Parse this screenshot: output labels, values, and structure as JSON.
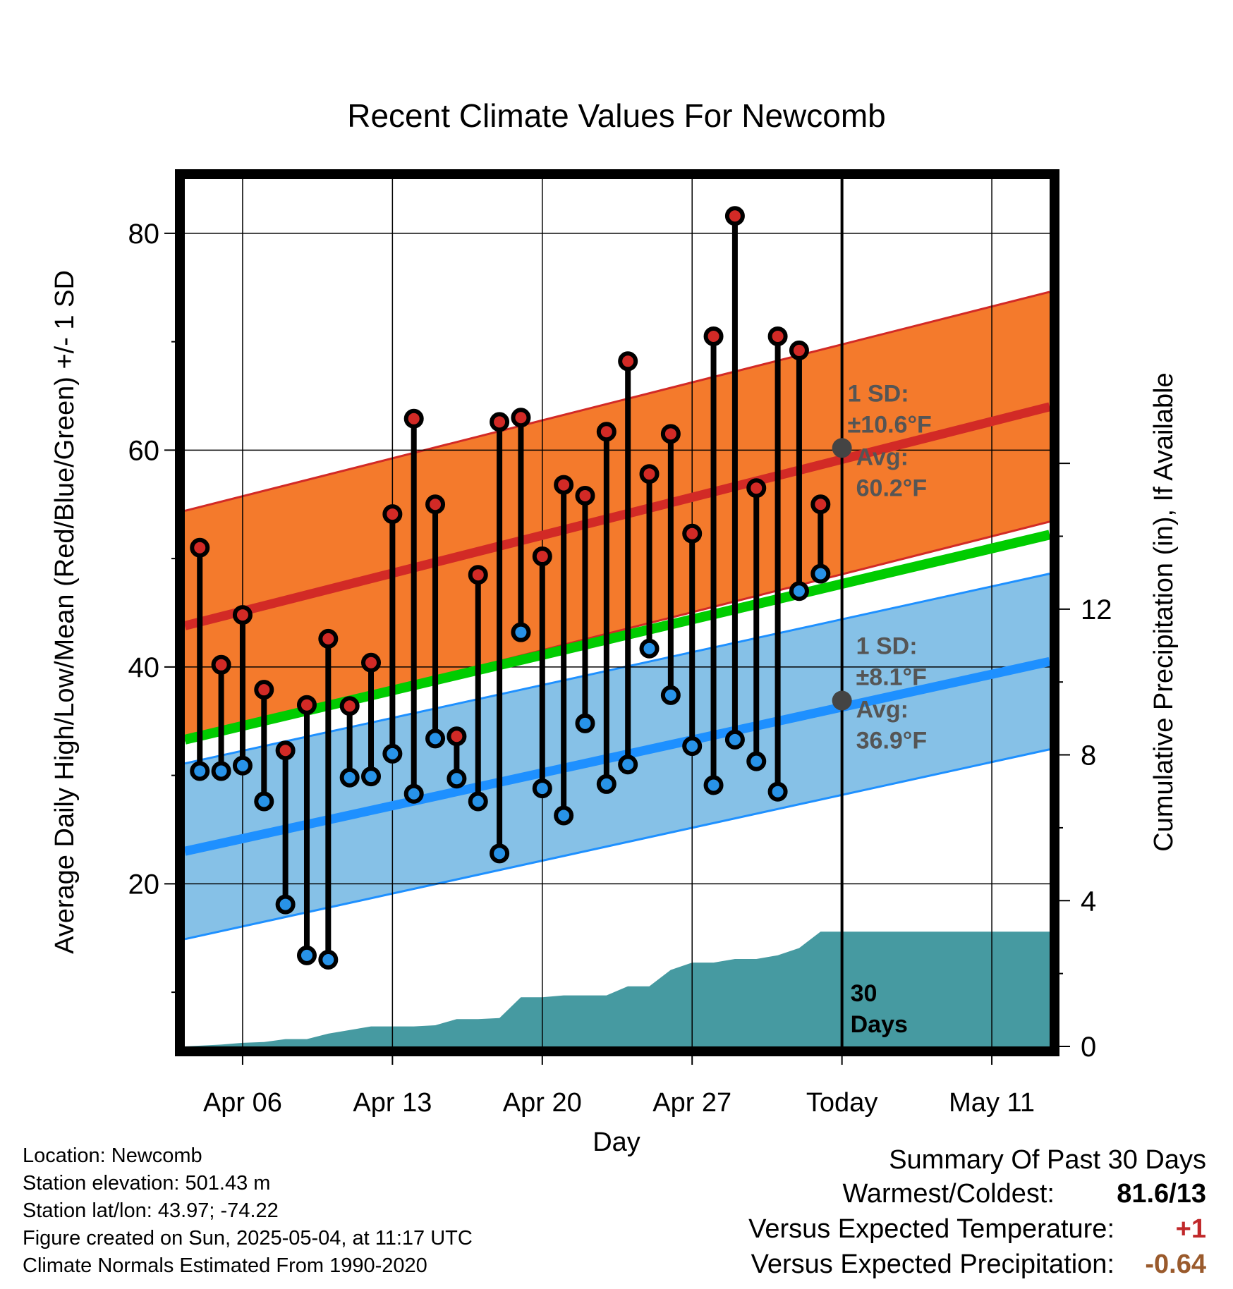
{
  "chart_data": {
    "type": "line",
    "title": "Recent Climate Values For Newcomb",
    "xlabel": "Day",
    "ylabel": "Average Daily High/Low/Mean (Red/Blue/Green) +/- 1 SD",
    "y2label": "Cumulative Precipitation (in), If Available",
    "ylim": [
      5,
      85
    ],
    "y2lim": [
      0,
      23.8
    ],
    "y_ticks": [
      "20",
      "40",
      "60",
      "80"
    ],
    "y2_ticks": [
      "0",
      "4",
      "8",
      "12"
    ],
    "x_tick_labels": [
      "Apr 06",
      "Apr 13",
      "Apr 20",
      "Apr 27",
      "Today",
      "May 11"
    ],
    "x_tick_days": [
      6,
      13,
      20,
      27,
      34,
      41
    ],
    "xlim": [
      3.3,
      43.7
    ],
    "today_day": 34,
    "days": [
      4,
      5,
      6,
      7,
      8,
      9,
      10,
      11,
      12,
      13,
      14,
      15,
      16,
      17,
      18,
      19,
      20,
      21,
      22,
      23,
      24,
      25,
      26,
      27,
      28,
      29,
      30,
      31,
      32,
      33
    ],
    "observed_high": [
      51.0,
      40.2,
      44.8,
      37.9,
      32.3,
      36.5,
      42.6,
      36.4,
      40.4,
      54.1,
      62.9,
      55.0,
      33.6,
      48.5,
      62.6,
      63.0,
      50.2,
      56.8,
      55.8,
      61.7,
      68.2,
      57.8,
      61.5,
      52.3,
      70.5,
      81.6,
      56.5,
      70.5,
      69.2,
      55.0
    ],
    "observed_low": [
      30.4,
      30.4,
      30.9,
      27.6,
      18.1,
      13.4,
      13.0,
      29.8,
      29.9,
      32.0,
      28.3,
      33.4,
      29.7,
      27.6,
      22.8,
      43.2,
      28.8,
      26.3,
      34.8,
      29.2,
      31.0,
      41.7,
      37.4,
      32.7,
      29.1,
      33.3,
      31.3,
      28.5,
      47.0,
      48.6
    ],
    "normal_high": {
      "start": 43.8,
      "end": 64.0
    },
    "normal_high_sd": 10.6,
    "normal_low": {
      "start": 23.0,
      "end": 40.5
    },
    "normal_low_sd": 8.1,
    "normal_mean": {
      "start": 33.3,
      "end": 52.2
    },
    "precip_days": [
      3.3,
      5,
      6,
      7,
      8,
      9,
      10,
      11,
      12,
      13,
      14,
      15,
      16,
      17,
      18,
      19,
      20,
      21,
      22,
      23,
      24,
      25,
      26,
      27,
      28,
      29,
      30,
      31,
      32,
      33,
      43.7
    ],
    "cumulative_precip": [
      0,
      0.05,
      0.1,
      0.12,
      0.2,
      0.2,
      0.35,
      0.45,
      0.55,
      0.55,
      0.55,
      0.58,
      0.75,
      0.75,
      0.78,
      1.35,
      1.35,
      1.4,
      1.4,
      1.4,
      1.65,
      1.65,
      2.1,
      2.3,
      2.3,
      2.4,
      2.4,
      2.5,
      2.7,
      3.15,
      3.15
    ],
    "high_annotation": {
      "sd_label": "1 SD:",
      "sd_value": "±10.6°F",
      "avg_label": "Avg:",
      "avg_value": "60.2°F",
      "avg": 60.2
    },
    "low_annotation": {
      "sd_label": "1 SD:",
      "sd_value": "±8.1°F",
      "avg_label": "Avg:",
      "avg_value": "36.9°F",
      "avg": 36.9
    },
    "period_label": [
      "30",
      "Days"
    ],
    "colors": {
      "high_band": "#f47a2c",
      "high_line": "#d22a26",
      "low_band": "#86c1e7",
      "low_line": "#1e90ff",
      "mean_line": "#00cc00",
      "precip": "#469aa1",
      "high_marker": "#d22a26",
      "low_marker": "#2893e8",
      "annotation_text": "#555555",
      "today_marker": "#444444"
    }
  },
  "info": {
    "location": "Location: Newcomb",
    "elevation": "Station elevation: 501.43 m",
    "latlon": "Station lat/lon: 43.97; -74.22",
    "created": "Figure created on Sun, 2025-05-04, at 11:17 UTC",
    "normals": "Climate Normals Estimated From 1990-2020"
  },
  "summary": {
    "title": "Summary Of Past 30 Days",
    "warmest_label": "Warmest/Coldest:",
    "warmest_value": "81.6/13",
    "temp_label": "Versus Expected Temperature:",
    "temp_value": "+1",
    "temp_color": "#c0282a",
    "precip_label": "Versus Expected Precipitation:",
    "precip_value": "-0.64",
    "precip_color": "#9a5a2c"
  }
}
